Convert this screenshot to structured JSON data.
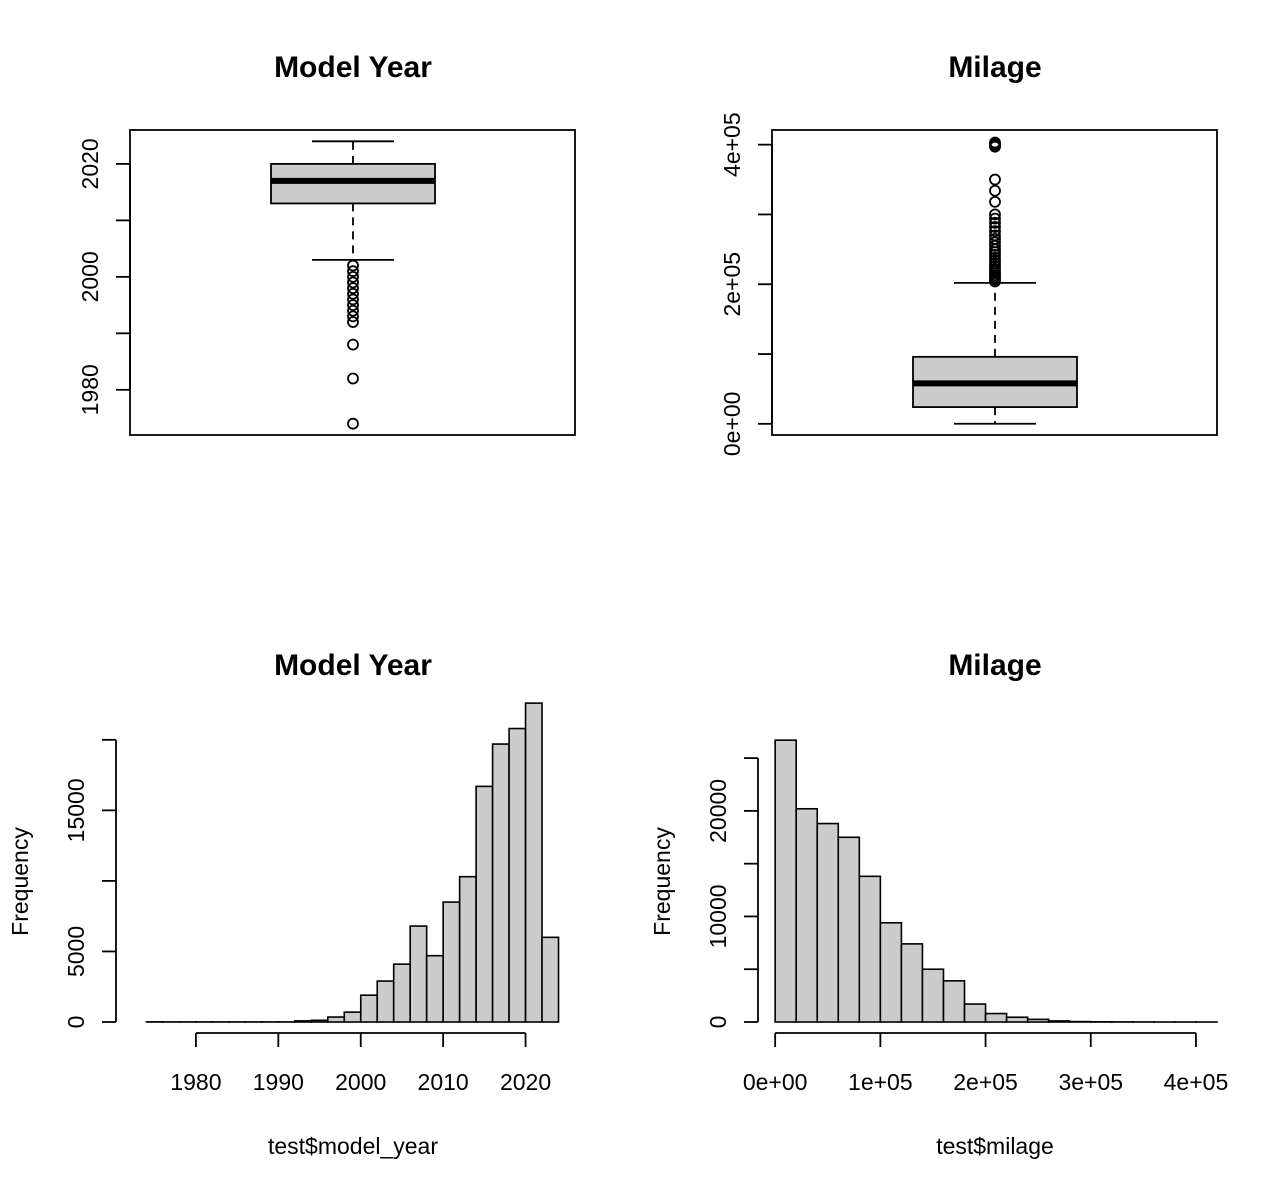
{
  "chart_data": [
    {
      "type": "boxplot",
      "title": "Model Year",
      "ylim": [
        1972,
        2026
      ],
      "yticks": [
        1980,
        1990,
        2000,
        2010,
        2020
      ],
      "ytick_labels": [
        "1980",
        "",
        "2000",
        "",
        "2020"
      ],
      "stats": {
        "whisker_low": 2003,
        "q1": 2013,
        "median": 2017,
        "q3": 2020,
        "whisker_high": 2024
      },
      "outliers": [
        1974,
        1982,
        1988,
        1992,
        1993,
        1994,
        1995,
        1996,
        1997,
        1998,
        1999,
        2000,
        2001,
        2002
      ],
      "frame": true
    },
    {
      "type": "boxplot",
      "title": "Milage",
      "ylim": [
        -16000,
        421000
      ],
      "yticks": [
        0,
        100000,
        200000,
        300000,
        400000
      ],
      "ytick_labels": [
        "0e+00",
        "",
        "2e+05",
        "",
        "4e+05"
      ],
      "stats": {
        "whisker_low": 100,
        "q1": 24000,
        "median": 58000,
        "q3": 96000,
        "whisker_high": 202000
      },
      "outliers": [
        204000,
        207000,
        210000,
        213000,
        216000,
        219000,
        222000,
        226000,
        230000,
        234000,
        238000,
        242000,
        246000,
        250000,
        255000,
        260000,
        265000,
        270000,
        276000,
        282000,
        288000,
        294000,
        300000,
        318000,
        334000,
        350000,
        397000,
        399000,
        401000,
        403000
      ],
      "frame": true
    },
    {
      "type": "bar",
      "title": "Model Year",
      "xlabel": "test$model_year",
      "ylabel": "Frequency",
      "xlim": [
        1972,
        2026
      ],
      "ylim": [
        0,
        20200
      ],
      "xticks": [
        1980,
        1990,
        2000,
        2010,
        2020
      ],
      "yticks": [
        0,
        5000,
        10000,
        15000,
        20000
      ],
      "ytick_labels": [
        "0",
        "5000",
        "",
        "15000",
        ""
      ],
      "bin_start": 1974,
      "bin_width": 2,
      "values": [
        10,
        5,
        5,
        5,
        5,
        5,
        5,
        5,
        5,
        80,
        120,
        350,
        700,
        1900,
        2900,
        4100,
        6800,
        4700,
        8500,
        10300,
        16700,
        19700,
        20800,
        22600,
        6000
      ]
    },
    {
      "type": "bar",
      "title": "Milage",
      "xlabel": "test$milage",
      "ylabel": "Frequency",
      "xlim": [
        -3000,
        420000
      ],
      "ylim": [
        0,
        27000
      ],
      "xticks": [
        0,
        100000,
        200000,
        300000,
        400000
      ],
      "xtick_labels": [
        "0e+00",
        "1e+05",
        "2e+05",
        "3e+05",
        "4e+05"
      ],
      "yticks": [
        0,
        5000,
        10000,
        15000,
        20000,
        25000
      ],
      "ytick_labels": [
        "0",
        "",
        "10000",
        "",
        "20000",
        ""
      ],
      "bin_start": 0,
      "bin_width": 20000,
      "values": [
        26700,
        20200,
        18800,
        17500,
        13800,
        9400,
        7400,
        5000,
        3900,
        1700,
        800,
        450,
        250,
        100,
        40,
        20,
        10,
        5,
        3,
        2,
        1
      ]
    }
  ]
}
